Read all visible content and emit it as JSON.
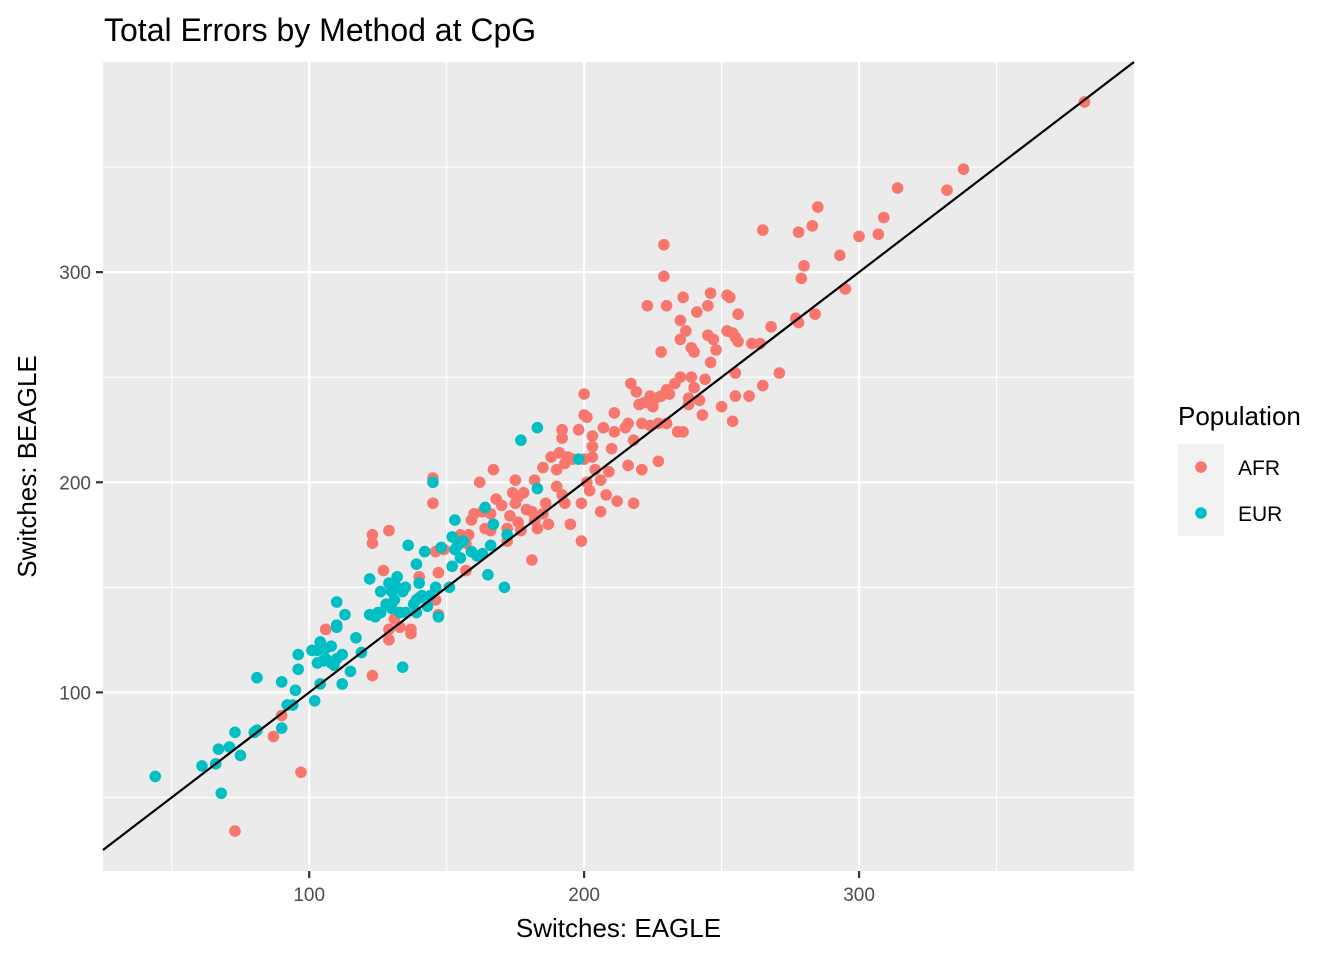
{
  "chart_data": {
    "type": "scatter",
    "title": "Total Errors by Method at CpG",
    "xlabel": "Switches: EAGLE",
    "ylabel": "Switches: BEAGLE",
    "xlim": [
      25,
      400
    ],
    "ylim": [
      15,
      400
    ],
    "x_ticks": [
      100,
      200,
      300
    ],
    "y_ticks": [
      100,
      200,
      300
    ],
    "x_tick_labels": [
      "100",
      "200",
      "300"
    ],
    "y_tick_labels": [
      "100",
      "200",
      "300"
    ],
    "grid": true,
    "legend": {
      "title": "Population",
      "position": "right"
    },
    "reference_line": {
      "slope": 1,
      "intercept": 0,
      "color": "#000000"
    },
    "series": [
      {
        "name": "AFR",
        "color": "#F8766D",
        "points": [
          [
            73,
            34
          ],
          [
            87,
            79
          ],
          [
            90,
            89
          ],
          [
            97,
            62
          ],
          [
            106,
            130
          ],
          [
            123,
            108
          ],
          [
            123,
            171
          ],
          [
            123,
            175
          ],
          [
            127,
            158
          ],
          [
            129,
            177
          ],
          [
            129,
            130
          ],
          [
            129,
            125
          ],
          [
            131,
            135
          ],
          [
            133,
            131
          ],
          [
            137,
            130
          ],
          [
            137,
            128
          ],
          [
            140,
            155
          ],
          [
            145,
            190
          ],
          [
            145,
            202
          ],
          [
            146,
            144
          ],
          [
            146,
            167
          ],
          [
            147,
            137
          ],
          [
            147,
            157
          ],
          [
            149,
            168
          ],
          [
            155,
            175
          ],
          [
            156,
            172
          ],
          [
            157,
            158
          ],
          [
            157,
            171
          ],
          [
            158,
            175
          ],
          [
            159,
            182
          ],
          [
            160,
            185
          ],
          [
            162,
            200
          ],
          [
            163,
            186
          ],
          [
            164,
            178
          ],
          [
            166,
            177
          ],
          [
            166,
            185
          ],
          [
            167,
            206
          ],
          [
            168,
            192
          ],
          [
            170,
            189
          ],
          [
            172,
            178
          ],
          [
            172,
            172
          ],
          [
            173,
            184
          ],
          [
            174,
            195
          ],
          [
            175,
            201
          ],
          [
            175,
            190
          ],
          [
            176,
            181
          ],
          [
            176,
            193
          ],
          [
            177,
            177
          ],
          [
            178,
            195
          ],
          [
            179,
            187
          ],
          [
            181,
            186
          ],
          [
            181,
            163
          ],
          [
            182,
            201
          ],
          [
            182,
            182
          ],
          [
            183,
            178
          ],
          [
            185,
            207
          ],
          [
            185,
            185
          ],
          [
            186,
            190
          ],
          [
            187,
            180
          ],
          [
            188,
            212
          ],
          [
            190,
            198
          ],
          [
            190,
            206
          ],
          [
            191,
            214
          ],
          [
            192,
            194
          ],
          [
            192,
            225
          ],
          [
            192,
            221
          ],
          [
            193,
            190
          ],
          [
            193,
            209
          ],
          [
            194,
            212
          ],
          [
            195,
            180
          ],
          [
            196,
            211
          ],
          [
            198,
            225
          ],
          [
            199,
            190
          ],
          [
            199,
            172
          ],
          [
            200,
            232
          ],
          [
            200,
            242
          ],
          [
            200,
            211
          ],
          [
            201,
            231
          ],
          [
            201,
            200
          ],
          [
            202,
            196
          ],
          [
            203,
            212
          ],
          [
            203,
            222
          ],
          [
            203,
            217
          ],
          [
            204,
            206
          ],
          [
            206,
            186
          ],
          [
            206,
            201
          ],
          [
            207,
            226
          ],
          [
            208,
            194
          ],
          [
            209,
            205
          ],
          [
            210,
            216
          ],
          [
            211,
            233
          ],
          [
            211,
            224
          ],
          [
            212,
            191
          ],
          [
            215,
            226
          ],
          [
            216,
            208
          ],
          [
            216,
            228
          ],
          [
            217,
            247
          ],
          [
            218,
            220
          ],
          [
            218,
            190
          ],
          [
            219,
            243
          ],
          [
            220,
            237
          ],
          [
            221,
            206
          ],
          [
            221,
            228
          ],
          [
            222,
            238
          ],
          [
            223,
            284
          ],
          [
            224,
            227
          ],
          [
            224,
            241
          ],
          [
            225,
            236
          ],
          [
            226,
            240
          ],
          [
            227,
            210
          ],
          [
            227,
            228
          ],
          [
            228,
            262
          ],
          [
            228,
            241
          ],
          [
            229,
            313
          ],
          [
            229,
            298
          ],
          [
            230,
            244
          ],
          [
            230,
            284
          ],
          [
            230,
            228
          ],
          [
            231,
            242
          ],
          [
            233,
            247
          ],
          [
            234,
            224
          ],
          [
            235,
            277
          ],
          [
            235,
            268
          ],
          [
            235,
            250
          ],
          [
            236,
            288
          ],
          [
            236,
            224
          ],
          [
            237,
            272
          ],
          [
            238,
            237
          ],
          [
            238,
            240
          ],
          [
            239,
            250
          ],
          [
            239,
            264
          ],
          [
            240,
            262
          ],
          [
            240,
            245
          ],
          [
            241,
            281
          ],
          [
            242,
            239
          ],
          [
            243,
            232
          ],
          [
            244,
            249
          ],
          [
            245,
            270
          ],
          [
            245,
            284
          ],
          [
            246,
            290
          ],
          [
            246,
            257
          ],
          [
            247,
            268
          ],
          [
            248,
            263
          ],
          [
            250,
            236
          ],
          [
            252,
            272
          ],
          [
            252,
            289
          ],
          [
            253,
            288
          ],
          [
            254,
            229
          ],
          [
            254,
            271
          ],
          [
            255,
            252
          ],
          [
            255,
            241
          ],
          [
            255,
            269
          ],
          [
            256,
            280
          ],
          [
            256,
            267
          ],
          [
            260,
            241
          ],
          [
            261,
            266
          ],
          [
            264,
            266
          ],
          [
            265,
            246
          ],
          [
            265,
            320
          ],
          [
            268,
            274
          ],
          [
            271,
            252
          ],
          [
            277,
            278
          ],
          [
            278,
            319
          ],
          [
            278,
            276
          ],
          [
            279,
            297
          ],
          [
            280,
            303
          ],
          [
            283,
            322
          ],
          [
            284,
            280
          ],
          [
            285,
            331
          ],
          [
            293,
            308
          ],
          [
            295,
            292
          ],
          [
            300,
            317
          ],
          [
            307,
            318
          ],
          [
            309,
            326
          ],
          [
            314,
            340
          ],
          [
            332,
            339
          ],
          [
            338,
            349
          ],
          [
            382,
            381
          ]
        ]
      },
      {
        "name": "EUR",
        "color": "#00BFC4",
        "points": [
          [
            44,
            60
          ],
          [
            61,
            65
          ],
          [
            66,
            66
          ],
          [
            67,
            73
          ],
          [
            68,
            52
          ],
          [
            71,
            74
          ],
          [
            73,
            81
          ],
          [
            75,
            70
          ],
          [
            80,
            81
          ],
          [
            81,
            82
          ],
          [
            81,
            107
          ],
          [
            90,
            105
          ],
          [
            90,
            83
          ],
          [
            92,
            94
          ],
          [
            94,
            94
          ],
          [
            95,
            101
          ],
          [
            96,
            111
          ],
          [
            96,
            118
          ],
          [
            101,
            120
          ],
          [
            102,
            96
          ],
          [
            103,
            114
          ],
          [
            103,
            120
          ],
          [
            104,
            124
          ],
          [
            104,
            104
          ],
          [
            105,
            115
          ],
          [
            106,
            116
          ],
          [
            106,
            121
          ],
          [
            108,
            114
          ],
          [
            109,
            113
          ],
          [
            108,
            122
          ],
          [
            110,
            143
          ],
          [
            110,
            116
          ],
          [
            110,
            131
          ],
          [
            110,
            132
          ],
          [
            112,
            104
          ],
          [
            112,
            118
          ],
          [
            113,
            137
          ],
          [
            115,
            110
          ],
          [
            117,
            126
          ],
          [
            119,
            119
          ],
          [
            122,
            137
          ],
          [
            122,
            154
          ],
          [
            124,
            136
          ],
          [
            125,
            138
          ],
          [
            126,
            148
          ],
          [
            126,
            138
          ],
          [
            128,
            142
          ],
          [
            129,
            152
          ],
          [
            130,
            140
          ],
          [
            130,
            148
          ],
          [
            131,
            144
          ],
          [
            131,
            150
          ],
          [
            132,
            155
          ],
          [
            132,
            150
          ],
          [
            133,
            138
          ],
          [
            134,
            112
          ],
          [
            134,
            148
          ],
          [
            135,
            138
          ],
          [
            135,
            150
          ],
          [
            136,
            170
          ],
          [
            138,
            142
          ],
          [
            139,
            144
          ],
          [
            139,
            138
          ],
          [
            139,
            161
          ],
          [
            140,
            152
          ],
          [
            140,
            145
          ],
          [
            141,
            146
          ],
          [
            142,
            167
          ],
          [
            143,
            141
          ],
          [
            144,
            146
          ],
          [
            145,
            200
          ],
          [
            146,
            150
          ],
          [
            147,
            136
          ],
          [
            148,
            169
          ],
          [
            151,
            150
          ],
          [
            152,
            160
          ],
          [
            152,
            174
          ],
          [
            153,
            168
          ],
          [
            153,
            182
          ],
          [
            154,
            170
          ],
          [
            155,
            164
          ],
          [
            156,
            172
          ],
          [
            159,
            167
          ],
          [
            161,
            165
          ],
          [
            163,
            166
          ],
          [
            164,
            188
          ],
          [
            165,
            156
          ],
          [
            166,
            170
          ],
          [
            167,
            180
          ],
          [
            171,
            150
          ],
          [
            172,
            175
          ],
          [
            183,
            197
          ],
          [
            183,
            226
          ],
          [
            177,
            220
          ],
          [
            198,
            211
          ]
        ]
      }
    ]
  }
}
